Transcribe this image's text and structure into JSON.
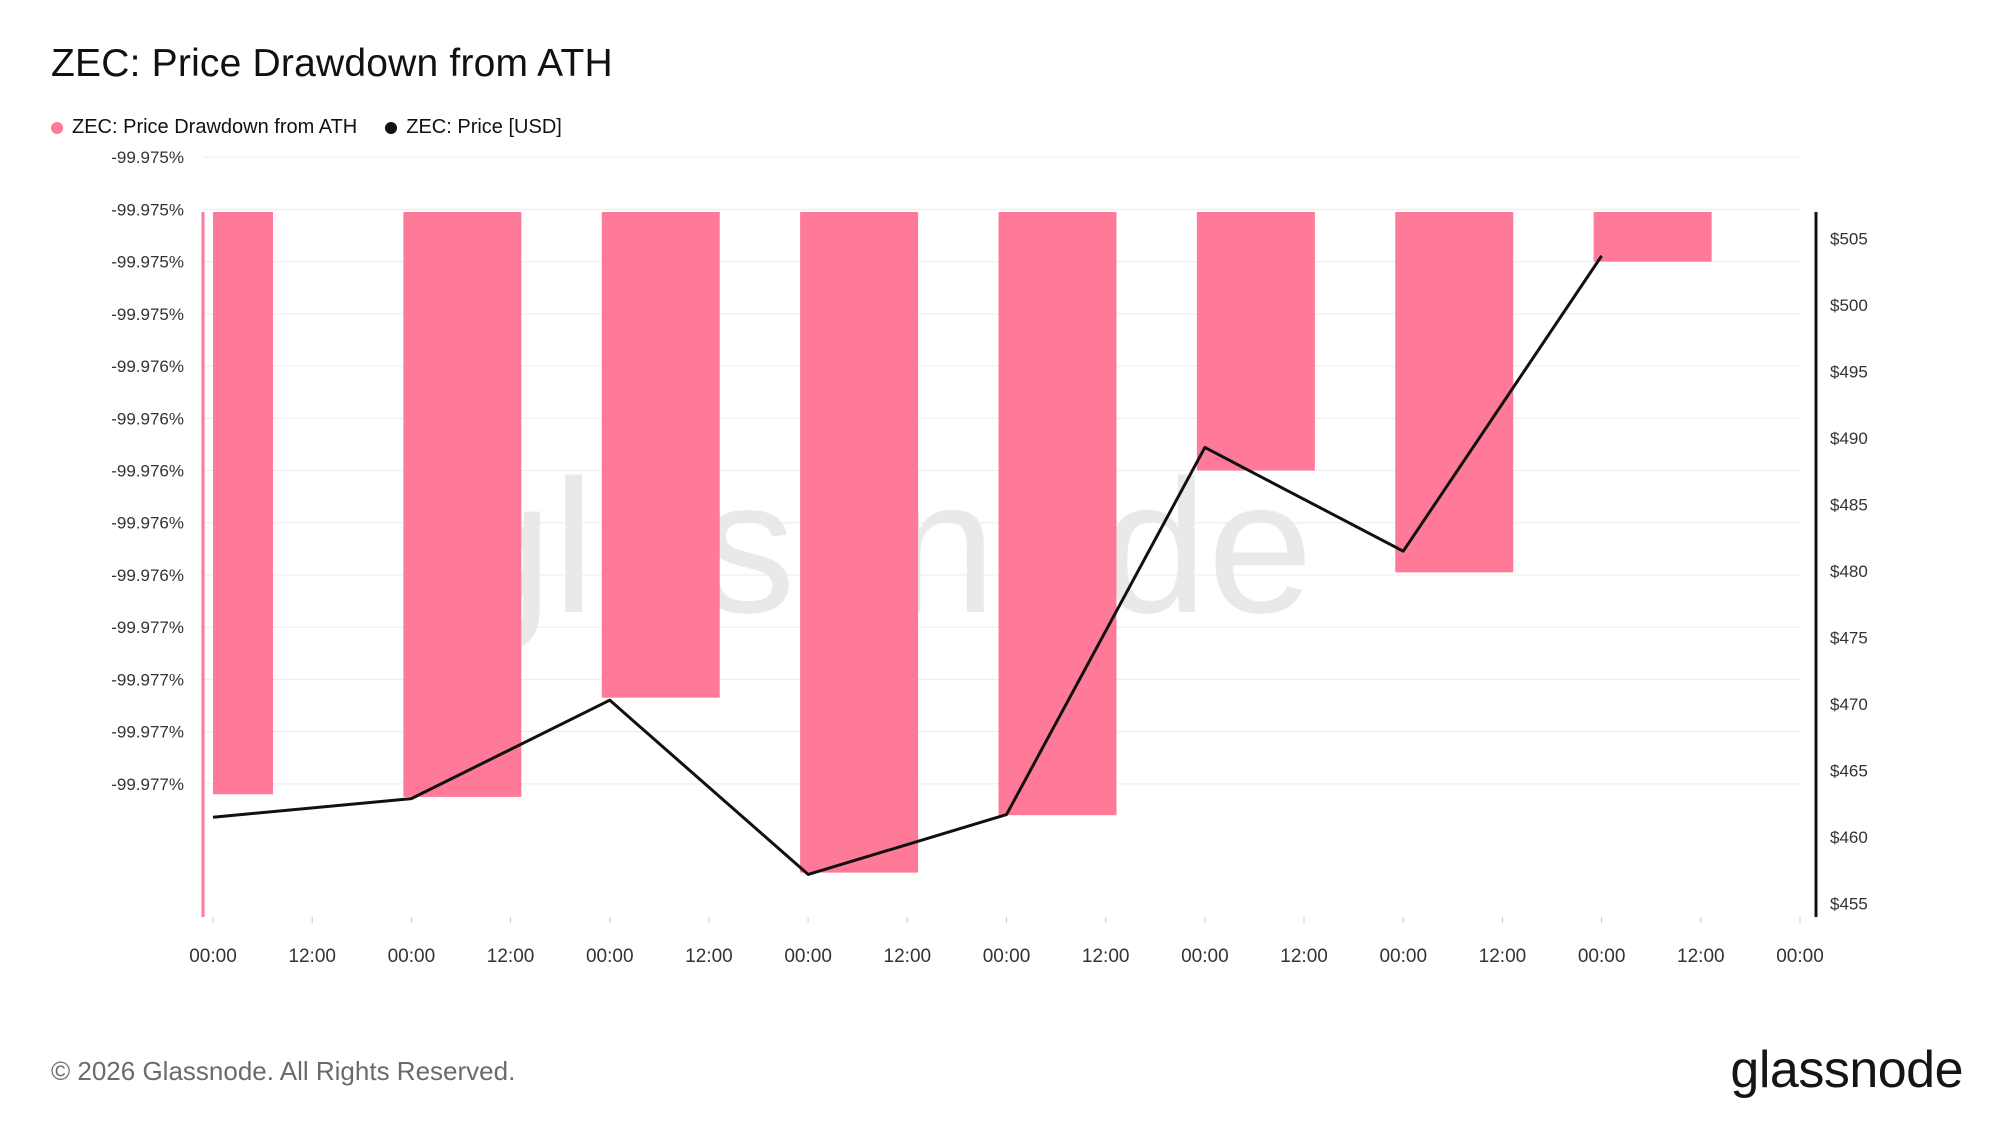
{
  "title": "ZEC: Price Drawdown from ATH",
  "legend": [
    {
      "label": "ZEC: Price Drawdown from ATH",
      "color": "#ff7a98"
    },
    {
      "label": "ZEC: Price [USD]",
      "color": "#111111"
    }
  ],
  "watermark": "glassnode",
  "footer": {
    "copyright": "© 2026 Glassnode. All Rights Reserved.",
    "logo": "glassnode"
  },
  "chart_data": {
    "type": "bar",
    "x_ticks": [
      "00:00",
      "12:00",
      "00:00",
      "12:00",
      "00:00",
      "12:00",
      "00:00",
      "12:00",
      "00:00",
      "12:00",
      "00:00",
      "12:00",
      "00:00",
      "12:00",
      "00:00",
      "12:00",
      "00:00"
    ],
    "left_axis": {
      "tick_labels": [
        "-99.975%",
        "-99.975%",
        "-99.975%",
        "-99.975%",
        "-99.976%",
        "-99.976%",
        "-99.976%",
        "-99.976%",
        "-99.976%",
        "-99.977%",
        "-99.977%",
        "-99.977%",
        "-99.977%"
      ],
      "tick_values": [
        -99.975,
        -99.9752,
        -99.9754,
        -99.9756,
        -99.9758,
        -99.976,
        -99.9762,
        -99.9764,
        -99.9766,
        -99.9768,
        -99.977,
        -99.9772,
        -99.9774
      ],
      "range": [
        -99.97521,
        -99.97791
      ]
    },
    "right_axis": {
      "tick_labels": [
        "$455",
        "$460",
        "$465",
        "$470",
        "$475",
        "$480",
        "$485",
        "$490",
        "$495",
        "$500",
        "$505"
      ],
      "tick_values": [
        455,
        460,
        465,
        470,
        475,
        480,
        485,
        490,
        495,
        500,
        505
      ],
      "range": [
        454,
        507
      ]
    },
    "series": [
      {
        "name": "ZEC: Price Drawdown from ATH",
        "type": "bar",
        "color": "#ff7a98",
        "axis": "left",
        "x_index": [
          0,
          2,
          4,
          6,
          8,
          10,
          12,
          14
        ],
        "values": [
          -99.97744,
          -99.97745,
          -99.97707,
          -99.97774,
          -99.97752,
          -99.9762,
          -99.97659,
          -99.9754
        ]
      },
      {
        "name": "ZEC: Price [USD]",
        "type": "line",
        "color": "#111111",
        "axis": "right",
        "x_index": [
          0,
          2,
          4,
          6,
          8,
          10,
          12,
          14
        ],
        "values": [
          461.5,
          462.9,
          470.3,
          457.2,
          461.7,
          489.3,
          481.5,
          503.7
        ]
      }
    ],
    "grid": true,
    "legend_position": "top-left"
  }
}
